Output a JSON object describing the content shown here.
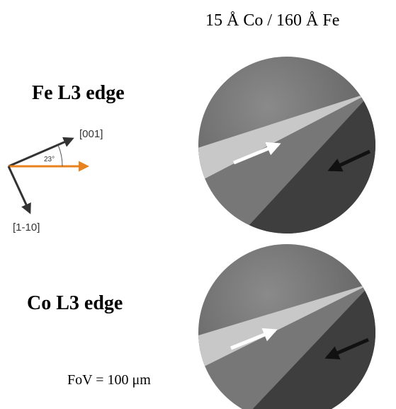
{
  "title": "15 Å Co / 160 Å Fe",
  "panels": [
    {
      "label": "Fe L3 edge"
    },
    {
      "label": "Co L3 edge"
    }
  ],
  "axes": {
    "direction_a": "[001]",
    "angle": "23°",
    "direction_b": "[1-10]"
  },
  "footer": "FoV = 100 μm"
}
